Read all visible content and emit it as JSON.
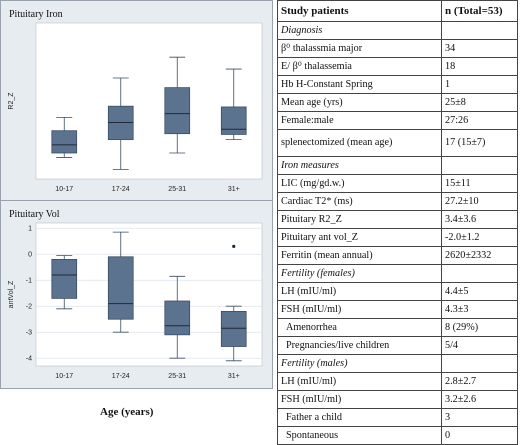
{
  "chart_data": [
    {
      "type": "box",
      "title": "Pituitary Iron",
      "ylabel": "R2_Z",
      "ylim": [
        -4.5,
        16.5
      ],
      "yticks": [],
      "categories": [
        "10-17",
        "17-24",
        "25-31",
        "31+"
      ],
      "boxes": [
        {
          "min": -1.6,
          "q1": -1.0,
          "median": 0.1,
          "q3": 2.0,
          "max": 3.8
        },
        {
          "min": -3.2,
          "q1": 0.8,
          "median": 3.1,
          "q3": 5.3,
          "max": 9.1
        },
        {
          "min": -1.0,
          "q1": 1.6,
          "median": 4.3,
          "q3": 7.8,
          "max": 11.9
        },
        {
          "min": 0.8,
          "q1": 1.5,
          "median": 2.2,
          "q3": 5.2,
          "max": 10.3
        }
      ],
      "outliers": [],
      "grid": true
    },
    {
      "type": "box",
      "title": "Pituitary Vol",
      "ylabel": "antVol_Z",
      "ylim": [
        -4.3,
        1.2
      ],
      "yticks": [
        "1",
        "0",
        "-1",
        "-2",
        "-3",
        "-4"
      ],
      "categories": [
        "10-17",
        "17-24",
        "25-31",
        "31+"
      ],
      "boxes": [
        {
          "min": -2.1,
          "q1": -1.7,
          "median": -0.8,
          "q3": -0.2,
          "max": -0.05
        },
        {
          "min": -3.0,
          "q1": -2.5,
          "median": -1.9,
          "q3": -0.1,
          "max": 0.85
        },
        {
          "min": -4.0,
          "q1": -3.1,
          "median": -2.75,
          "q3": -1.8,
          "max": -0.85
        },
        {
          "min": -4.1,
          "q1": -3.55,
          "median": -2.85,
          "q3": -2.2,
          "max": -2.0
        }
      ],
      "outliers": [
        {
          "category": "31+",
          "value": 0.3
        }
      ],
      "grid": true
    }
  ],
  "xlabel": "Age (years)",
  "table": {
    "header": [
      "Study patients",
      "n (Total=53)"
    ],
    "rows": [
      {
        "type": "section",
        "label": "Diagnosis"
      },
      {
        "label": "β⁰ thalassmia major",
        "value": "34"
      },
      {
        "label": "E/ β⁰ thalassemia",
        "value": "18"
      },
      {
        "label": "Hb H-Constant Spring",
        "value": "1"
      },
      {
        "label": "Mean age (yrs)",
        "value": "25±8"
      },
      {
        "label": "Female:male",
        "value": "27:26"
      },
      {
        "label": "splenectomized (mean age)",
        "value": "17 (15±7)",
        "tall": true
      },
      {
        "type": "section",
        "label": "Iron measures"
      },
      {
        "label": "LIC (mg/gd.w.)",
        "value": "15±11"
      },
      {
        "label": "Cardiac T2* (ms)",
        "value": "27.2±10"
      },
      {
        "label": "Pituitary R2_Z",
        "value": "3.4±3.6"
      },
      {
        "label": "Pituitary ant vol_Z",
        "value": "-2.0±1.2"
      },
      {
        "label": "Ferritin (mean annual)",
        "value": "2620±2332"
      },
      {
        "type": "section",
        "label": "Fertility (females)"
      },
      {
        "label": "LH (mIU/ml)",
        "value": "4.4±5"
      },
      {
        "label": "FSH (mIU/ml)",
        "value": "4.3±3"
      },
      {
        "label": "Amenorrhea",
        "value": "8 (29%)",
        "indent": true
      },
      {
        "label": "Pregnancies/live children",
        "value": "5/4",
        "indent": true
      },
      {
        "type": "section",
        "label": "Fertility (males)"
      },
      {
        "label": "LH (mIU/ml)",
        "value": "2.8±2.7"
      },
      {
        "label": "FSH (mIU/ml)",
        "value": "3.2±2.6"
      },
      {
        "label": "Father a child",
        "value": "3",
        "indent": true
      },
      {
        "label": "Spontaneous",
        "value": "0",
        "indent": true
      }
    ]
  }
}
